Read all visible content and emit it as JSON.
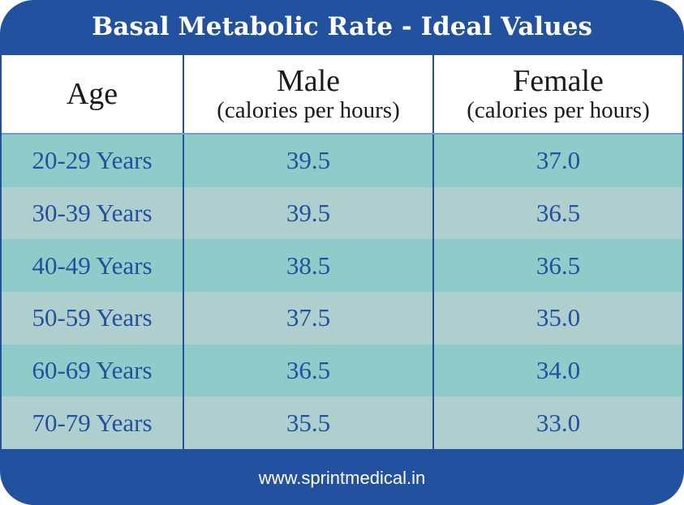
{
  "title": "Basal Metabolic Rate - Ideal Values",
  "headers": [
    {
      "main": "Age",
      "sub": ""
    },
    {
      "main": "Male",
      "sub": "(calories per hours)"
    },
    {
      "main": "Female",
      "sub": "(calories per hours)"
    }
  ],
  "rows": [
    [
      "20-29 Years",
      "39.5",
      "37.0"
    ],
    [
      "30-39 Years",
      "39.5",
      "36.5"
    ],
    [
      "40-49 Years",
      "38.5",
      "36.5"
    ],
    [
      "50-59 Years",
      "37.5",
      "35.0"
    ],
    [
      "60-69 Years",
      "36.5",
      "34.0"
    ],
    [
      "70-79 Years",
      "35.5",
      "33.0"
    ]
  ],
  "footer": "www.sprintmedical.in",
  "colors": {
    "brand": "#2251a0",
    "row_a": "#8ecbc9",
    "row_b": "#aecfcd"
  }
}
